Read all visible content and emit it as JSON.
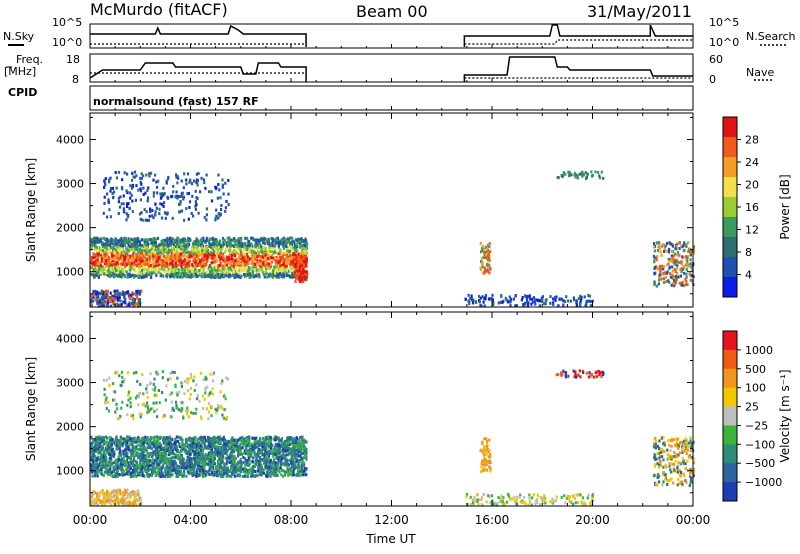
{
  "header": {
    "station": "McMurdo (fitACF)",
    "beam": "Beam 00",
    "date": "31/May/2011"
  },
  "summary_panels": {
    "nsky_label": "N.Sky",
    "nsky_ticks": [
      "10^5",
      "10^0"
    ],
    "nsearch_label": "N.Search",
    "nsearch_ticks": [
      "10^5",
      "10^0"
    ],
    "freq_label": "Freq.",
    "freq_unit": "[MHz]",
    "freq_ticks": [
      "18",
      "8"
    ],
    "nave_label": "Nave",
    "nave_ticks": [
      "60",
      "0"
    ],
    "cpid_label": "CPID",
    "cpid_text": "normalsound (fast) 157 RF"
  },
  "chart_data": [
    {
      "type": "heatmap",
      "panel": "power",
      "ylabel": "Slant Range [km]",
      "xlabel": "Time UT",
      "ylim": [
        200,
        4600
      ],
      "xlim_hours": [
        0,
        24
      ],
      "y_ticks": [
        "4000",
        "3000",
        "2000",
        "1000"
      ],
      "x_ticks": [
        "00:00",
        "04:00",
        "08:00",
        "12:00",
        "16:00",
        "20:00",
        "00:00"
      ],
      "colorbar_label": "Power [dB]",
      "colorbar_ticks": [
        "28",
        "24",
        "20",
        "16",
        "12",
        "8",
        "4"
      ],
      "colorbar_colors": [
        "#0a1ee6",
        "#2050b4",
        "#2d6e6e",
        "#3a9a60",
        "#9acd32",
        "#f2e04a",
        "#f59c28",
        "#f25a1a",
        "#e01414"
      ],
      "data_windows_hours": [
        [
          0.0,
          8.6
        ],
        [
          14.9,
          16.3
        ],
        [
          18.3,
          20.6
        ],
        [
          22.3,
          24.0
        ]
      ]
    },
    {
      "type": "heatmap",
      "panel": "velocity",
      "ylabel": "Slant Range [km]",
      "xlabel": "Time UT",
      "ylim": [
        200,
        4600
      ],
      "xlim_hours": [
        0,
        24
      ],
      "y_ticks": [
        "4000",
        "3000",
        "2000",
        "1000"
      ],
      "x_ticks": [
        "00:00",
        "04:00",
        "08:00",
        "12:00",
        "16:00",
        "20:00",
        "00:00"
      ],
      "colorbar_label": "Velocity [m s⁻¹]",
      "colorbar_ticks": [
        "1000",
        "500",
        "100",
        "25",
        "−25",
        "−100",
        "−500",
        "−1000"
      ],
      "colorbar_colors": [
        "#1e3cb4",
        "#2d64a0",
        "#2d8c78",
        "#3cb43c",
        "#bebebe",
        "#f0c800",
        "#f0961e",
        "#f05a14",
        "#e6141e"
      ],
      "data_windows_hours": [
        [
          0.0,
          8.6
        ],
        [
          14.9,
          16.3
        ],
        [
          18.3,
          20.6
        ],
        [
          22.3,
          24.0
        ]
      ]
    }
  ]
}
